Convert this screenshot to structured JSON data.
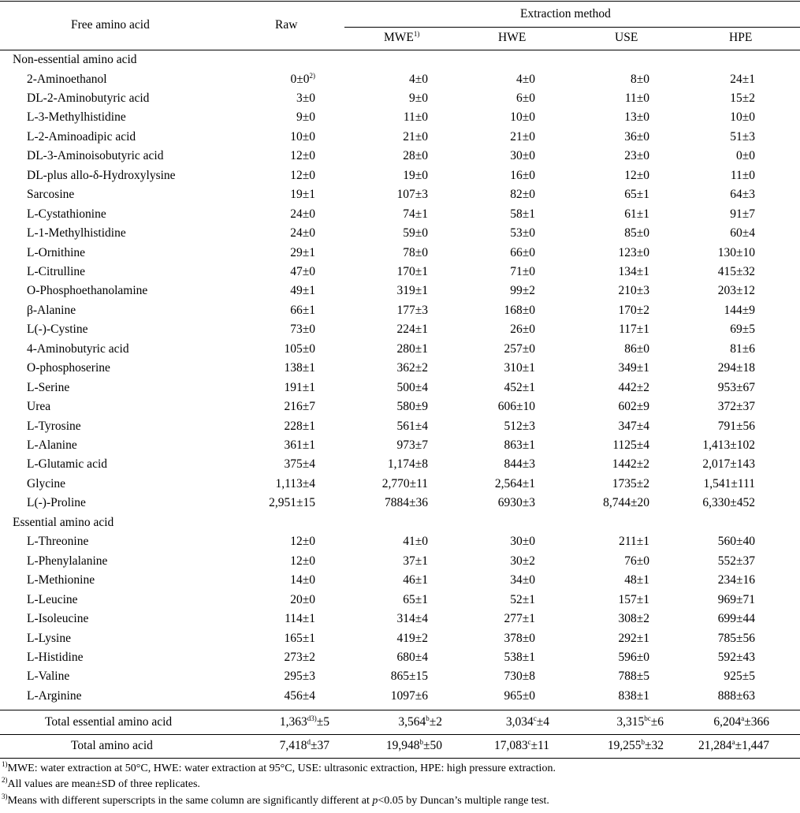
{
  "table": {
    "header": {
      "col_name": "Free amino acid",
      "col_raw": "Raw",
      "group": "Extraction method",
      "methods": [
        "MWE",
        "HWE",
        "USE",
        "HPE"
      ],
      "mwe_sup": "1)"
    },
    "sections": [
      {
        "title": "Non-essential amino acid",
        "rows": [
          {
            "name": "2-Aminoethanol",
            "raw": "0±0",
            "raw_sup": "2)",
            "mwe": "4±0",
            "hwe": "4±0",
            "use": "8±0",
            "hpe": "24±1"
          },
          {
            "name": "DL-2-Aminobutyric acid",
            "raw": "3±0",
            "mwe": "9±0",
            "hwe": "6±0",
            "use": "11±0",
            "hpe": "15±2"
          },
          {
            "name": "L-3-Methylhistidine",
            "raw": "9±0",
            "mwe": "11±0",
            "hwe": "10±0",
            "use": "13±0",
            "hpe": "10±0"
          },
          {
            "name": "L-2-Aminoadipic acid",
            "raw": "10±0",
            "mwe": "21±0",
            "hwe": "21±0",
            "use": "36±0",
            "hpe": "51±3"
          },
          {
            "name": "DL-3-Aminoisobutyric acid",
            "raw": "12±0",
            "mwe": "28±0",
            "hwe": "30±0",
            "use": "23±0",
            "hpe": "0±0"
          },
          {
            "name": "DL-plus allo-δ-Hydroxylysine",
            "raw": "12±0",
            "mwe": "19±0",
            "hwe": "16±0",
            "use": "12±0",
            "hpe": "11±0"
          },
          {
            "name": "Sarcosine",
            "raw": "19±1",
            "mwe": "107±3",
            "hwe": "82±0",
            "use": "65±1",
            "hpe": "64±3"
          },
          {
            "name": "L-Cystathionine",
            "raw": "24±0",
            "mwe": "74±1",
            "hwe": "58±1",
            "use": "61±1",
            "hpe": "91±7"
          },
          {
            "name": "L-1-Methylhistidine",
            "raw": "24±0",
            "mwe": "59±0",
            "hwe": "53±0",
            "use": "85±0",
            "hpe": "60±4"
          },
          {
            "name": "L-Ornithine",
            "raw": "29±1",
            "mwe": "78±0",
            "hwe": "66±0",
            "use": "123±0",
            "hpe": "130±10"
          },
          {
            "name": "L-Citrulline",
            "raw": "47±0",
            "mwe": "170±1",
            "hwe": "71±0",
            "use": "134±1",
            "hpe": "415±32"
          },
          {
            "name": "O-Phosphoethanolamine",
            "raw": "49±1",
            "mwe": "319±1",
            "hwe": "99±2",
            "use": "210±3",
            "hpe": "203±12"
          },
          {
            "name": "β-Alanine",
            "raw": "66±1",
            "mwe": "177±3",
            "hwe": "168±0",
            "use": "170±2",
            "hpe": "144±9"
          },
          {
            "name": "L(-)-Cystine",
            "raw": "73±0",
            "mwe": "224±1",
            "hwe": "26±0",
            "use": "117±1",
            "hpe": "69±5"
          },
          {
            "name": "4-Aminobutyric acid",
            "raw": "105±0",
            "mwe": "280±1",
            "hwe": "257±0",
            "use": "86±0",
            "hpe": "81±6"
          },
          {
            "name": "O-phosphoserine",
            "raw": "138±1",
            "mwe": "362±2",
            "hwe": "310±1",
            "use": "349±1",
            "hpe": "294±18"
          },
          {
            "name": "L-Serine",
            "raw": "191±1",
            "mwe": "500±4",
            "hwe": "452±1",
            "use": "442±2",
            "hpe": "953±67"
          },
          {
            "name": "Urea",
            "raw": "216±7",
            "mwe": "580±9",
            "hwe": "606±10",
            "use": "602±9",
            "hpe": "372±37"
          },
          {
            "name": "L-Tyrosine",
            "raw": "228±1",
            "mwe": "561±4",
            "hwe": "512±3",
            "use": "347±4",
            "hpe": "791±56"
          },
          {
            "name": "L-Alanine",
            "raw": "361±1",
            "mwe": "973±7",
            "hwe": "863±1",
            "use": "1125±4",
            "hpe": "1,413±102"
          },
          {
            "name": "L-Glutamic acid",
            "raw": "375±4",
            "mwe": "1,174±8",
            "hwe": "844±3",
            "use": "1442±2",
            "hpe": "2,017±143"
          },
          {
            "name": "Glycine",
            "raw": "1,113±4",
            "mwe": "2,770±11",
            "hwe": "2,564±1",
            "use": "1735±2",
            "hpe": "1,541±111"
          },
          {
            "name": "L(-)-Proline",
            "raw": "2,951±15",
            "mwe": "7884±36",
            "hwe": "6930±3",
            "use": "8,744±20",
            "hpe": "6,330±452"
          }
        ]
      },
      {
        "title": "Essential amino acid",
        "rows": [
          {
            "name": "L-Threonine",
            "raw": "12±0",
            "mwe": "41±0",
            "hwe": "30±0",
            "use": "211±1",
            "hpe": "560±40"
          },
          {
            "name": "L-Phenylalanine",
            "raw": "12±0",
            "mwe": "37±1",
            "hwe": "30±2",
            "use": "76±0",
            "hpe": "552±37"
          },
          {
            "name": "L-Methionine",
            "raw": "14±0",
            "mwe": "46±1",
            "hwe": "34±0",
            "use": "48±1",
            "hpe": "234±16"
          },
          {
            "name": "L-Leucine",
            "raw": "20±0",
            "mwe": "65±1",
            "hwe": "52±1",
            "use": "157±1",
            "hpe": "969±71"
          },
          {
            "name": "L-Isoleucine",
            "raw": "114±1",
            "mwe": "314±4",
            "hwe": "277±1",
            "use": "308±2",
            "hpe": "699±44"
          },
          {
            "name": "L-Lysine",
            "raw": "165±1",
            "mwe": "419±2",
            "hwe": "378±0",
            "use": "292±1",
            "hpe": "785±56"
          },
          {
            "name": "L-Histidine",
            "raw": "273±2",
            "mwe": "680±4",
            "hwe": "538±1",
            "use": "596±0",
            "hpe": "592±43"
          },
          {
            "name": "L-Valine",
            "raw": "295±3",
            "mwe": "865±15",
            "hwe": "730±8",
            "use": "788±5",
            "hpe": "925±5"
          },
          {
            "name": "L-Arginine",
            "raw": "456±4",
            "mwe": "1097±6",
            "hwe": "965±0",
            "use": "838±1",
            "hpe": "888±63"
          }
        ]
      }
    ],
    "totals": [
      {
        "name": "Total essential amino acid",
        "raw": {
          "a": "1,363",
          "s": "d3)",
          "b": "±5"
        },
        "mwe": {
          "a": "3,564",
          "s": "b",
          "b": "±2"
        },
        "hwe": {
          "a": "3,034",
          "s": "c",
          "b": "±4"
        },
        "use": {
          "a": "3,315",
          "s": "bc",
          "b": "±6"
        },
        "hpe": {
          "a": "6,204",
          "s": "a",
          "b": "±366"
        }
      },
      {
        "name": "Total amino acid",
        "raw": {
          "a": "7,418",
          "s": "d",
          "b": "±37"
        },
        "mwe": {
          "a": "19,948",
          "s": "b",
          "b": "±50"
        },
        "hwe": {
          "a": "17,083",
          "s": "c",
          "b": "±11"
        },
        "use": {
          "a": "19,255",
          "s": "b",
          "b": "±32"
        },
        "hpe": {
          "a": "21,284",
          "s": "a",
          "b": "±1,447"
        }
      }
    ]
  },
  "footnotes": [
    {
      "sup": "1)",
      "text": "MWE: water extraction at 50°C, HWE: water extraction at 95°C, USE: ultrasonic extraction, HPE: high pressure extraction."
    },
    {
      "sup": "2)",
      "text": "All values are mean±SD of three replicates."
    },
    {
      "sup": "3)",
      "pre": "Means with different superscripts in the same column are significantly different at ",
      "ital": "p",
      "post": "<0.05 by Duncan’s multiple range test."
    }
  ]
}
